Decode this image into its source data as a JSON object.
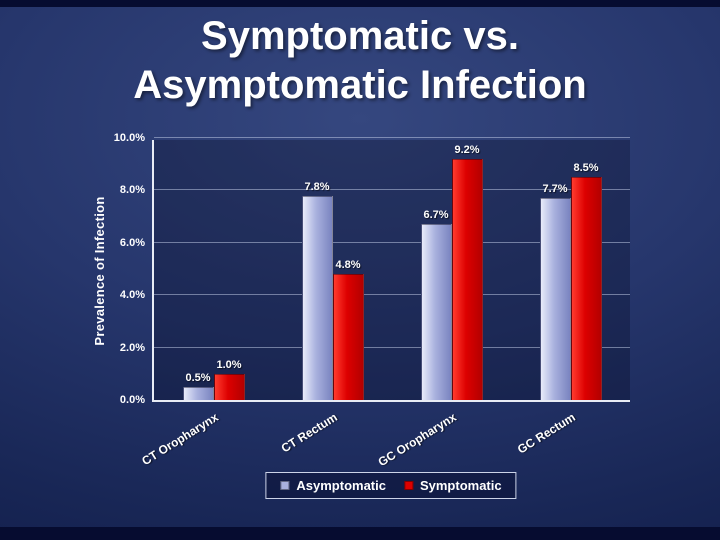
{
  "slide": {
    "title_line1": "Symptomatic vs.",
    "title_line2": "Asymptomatic Infection"
  },
  "chart_data": {
    "type": "bar",
    "title": "Symptomatic vs. Asymptomatic Infection",
    "categories": [
      "CT Oropharynx",
      "CT Rectum",
      "GC Oropharynx",
      "GC Rectum"
    ],
    "series": [
      {
        "name": "Asymptomatic",
        "values": [
          0.5,
          7.8,
          6.7,
          7.7
        ],
        "labels": [
          "0.5%",
          "7.8%",
          "6.7%",
          "7.7%"
        ],
        "color": "#a9b1de",
        "color_light": "#e8ebfa",
        "color_dark": "#7a84c0"
      },
      {
        "name": "Symptomatic",
        "values": [
          1.0,
          4.8,
          9.2,
          8.5
        ],
        "labels": [
          "1.0%",
          "4.8%",
          "9.2%",
          "8.5%"
        ],
        "color": "#dd0000",
        "color_light": "#ff3b2e",
        "color_dark": "#b30000"
      }
    ],
    "ylabel": "Prevalence of Infection",
    "ylim": [
      0,
      10
    ],
    "yticks": [
      "0.0%",
      "2.0%",
      "4.0%",
      "6.0%",
      "8.0%",
      "10.0%"
    ],
    "grid": true,
    "legend_position": "bottom"
  }
}
